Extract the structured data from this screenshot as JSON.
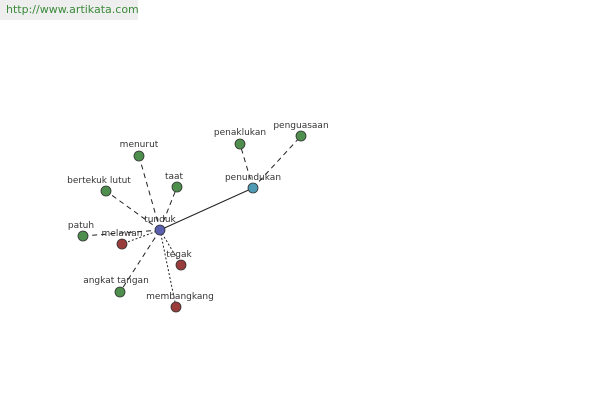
{
  "header": {
    "url": "http://www.artikata.com"
  },
  "nodes": [
    {
      "label": "tunduk"
    },
    {
      "label": "penundukan"
    },
    {
      "label": "penaklukan"
    },
    {
      "label": "penguasaan"
    },
    {
      "label": "menurut"
    },
    {
      "label": "taat"
    },
    {
      "label": "bertekuk lutut"
    },
    {
      "label": "patuh"
    },
    {
      "label": "melawan"
    },
    {
      "label": "tegak"
    },
    {
      "label": "angkat tangan"
    },
    {
      "label": "membangkang"
    }
  ]
}
